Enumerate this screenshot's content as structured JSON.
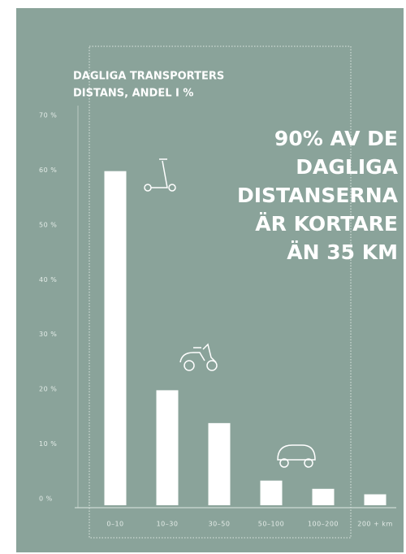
{
  "chart_data": {
    "type": "bar",
    "title": [
      "DAGLIGA TRANSPORTERS",
      "DISTANS, ANDEL I %"
    ],
    "annotation": [
      "90% AV DE",
      "DAGLIGA",
      "DISTANSERNA",
      "ÄR KORTARE",
      "ÄN 35 KM"
    ],
    "categories": [
      "0–10",
      "10–30",
      "30–50",
      "50–100",
      "100–200",
      "200 + km"
    ],
    "values": [
      61,
      21,
      15,
      4.5,
      3,
      2
    ],
    "color": "#ffffff",
    "ylim": [
      0,
      70
    ],
    "yticks": [
      {
        "value": 0,
        "label": "0 %"
      },
      {
        "value": 10,
        "label": "10 %"
      },
      {
        "value": 20,
        "label": "20 %"
      },
      {
        "value": 30,
        "label": "30 %"
      },
      {
        "value": 40,
        "label": "40 %"
      },
      {
        "value": 50,
        "label": "50 %"
      },
      {
        "value": 60,
        "label": "60 %"
      },
      {
        "value": 70,
        "label": "70 %"
      }
    ],
    "grid": false
  }
}
